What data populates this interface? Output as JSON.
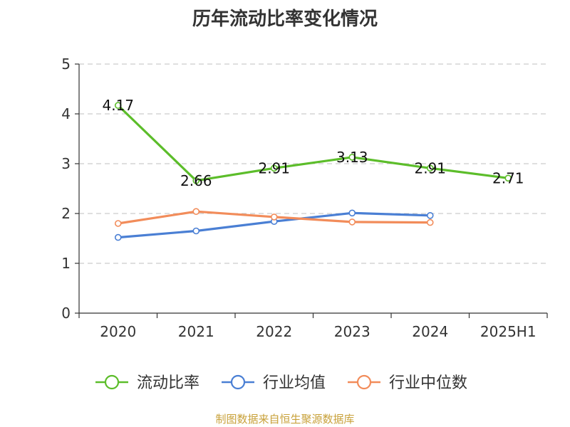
{
  "chart_data": {
    "type": "line",
    "title": "历年流动比率变化情况",
    "categories": [
      "2020",
      "2021",
      "2022",
      "2023",
      "2024",
      "2025H1"
    ],
    "y_ticks": [
      "0",
      "1",
      "2",
      "3",
      "4",
      "5"
    ],
    "ylim": [
      0,
      5
    ],
    "grid": "horizontal dashed",
    "legend_position": "bottom",
    "series": [
      {
        "name": "流动比率",
        "color": "#5cbd2a",
        "values": [
          4.17,
          2.66,
          2.91,
          3.13,
          2.91,
          2.71
        ],
        "labels": [
          "4.17",
          "2.66",
          "2.91",
          "3.13",
          "2.91",
          "2.71"
        ]
      },
      {
        "name": "行业均值",
        "color": "#4a7fd4",
        "values": [
          1.52,
          1.65,
          1.84,
          2.01,
          1.96,
          null
        ]
      },
      {
        "name": "行业中位数",
        "color": "#f28c5a",
        "values": [
          1.8,
          2.04,
          1.93,
          1.83,
          1.82,
          null
        ]
      }
    ]
  },
  "source_note": "制图数据来自恒生聚源数据库"
}
